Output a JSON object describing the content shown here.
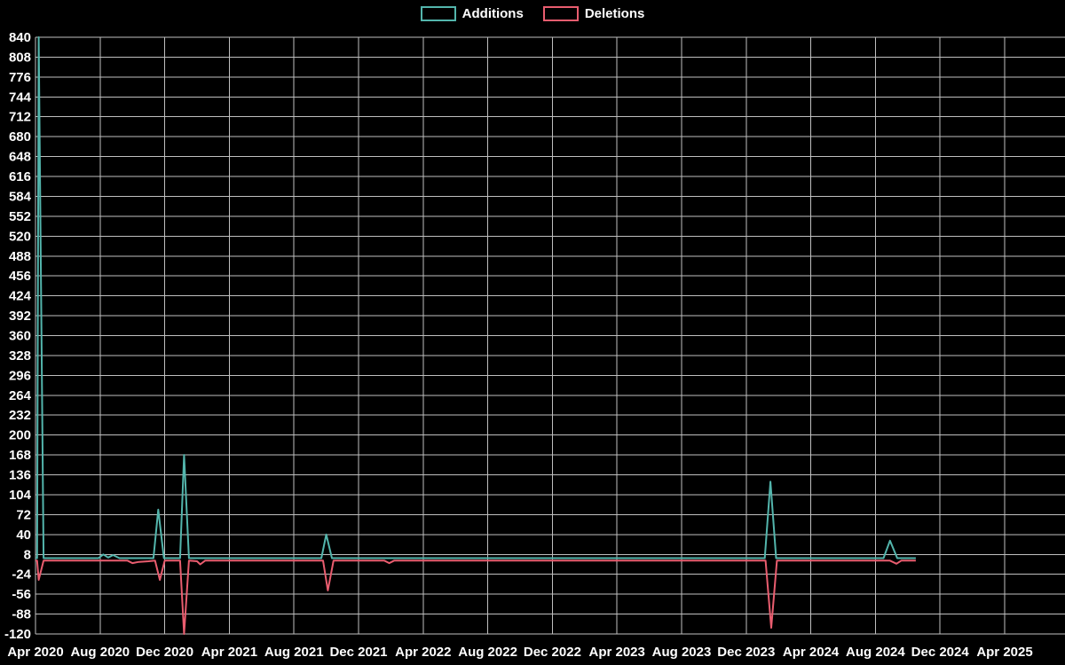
{
  "chart_data": {
    "type": "line",
    "title": "",
    "legend": [
      {
        "label": "Additions",
        "color": "#53b5ac"
      },
      {
        "label": "Deletions",
        "color": "#e95d6f"
      }
    ],
    "x_tick_labels": [
      "Apr 2020",
      "Aug 2020",
      "Dec 2020",
      "Apr 2021",
      "Aug 2021",
      "Dec 2021",
      "Apr 2022",
      "Aug 2022",
      "Dec 2022",
      "Apr 2023",
      "Aug 2023",
      "Dec 2023",
      "Apr 2024",
      "Aug 2024",
      "Dec 2024",
      "Apr 2025"
    ],
    "x_axis_unit": "months_since_apr_2020",
    "x_tick_interval_months": 4,
    "y_ticks": [
      840,
      808,
      776,
      744,
      712,
      680,
      648,
      616,
      584,
      552,
      520,
      488,
      456,
      424,
      392,
      360,
      328,
      296,
      264,
      232,
      200,
      168,
      136,
      104,
      72,
      40,
      8,
      -24,
      -56,
      -88,
      -120
    ],
    "ylim": [
      -120,
      840
    ],
    "xlim_months": [
      0,
      61
    ],
    "grid": true,
    "legend_position": "top-center",
    "background": "#000000",
    "grid_color": "#bfbfbf",
    "text_color": "#ffffff",
    "series": [
      {
        "name": "Additions",
        "color": "#53b5ac",
        "points": [
          [
            0,
            2
          ],
          [
            0.1,
            2
          ],
          [
            0.2,
            840
          ],
          [
            0.5,
            2
          ],
          [
            3.9,
            2
          ],
          [
            4.2,
            8
          ],
          [
            4.5,
            3
          ],
          [
            4.8,
            7
          ],
          [
            5.2,
            2
          ],
          [
            7.3,
            2
          ],
          [
            7.6,
            80
          ],
          [
            7.95,
            2
          ],
          [
            8.95,
            2
          ],
          [
            9.2,
            168
          ],
          [
            9.5,
            2
          ],
          [
            17.7,
            2
          ],
          [
            18.0,
            40
          ],
          [
            18.35,
            2
          ],
          [
            45.15,
            2
          ],
          [
            45.5,
            125
          ],
          [
            45.85,
            2
          ],
          [
            52.5,
            2
          ],
          [
            52.9,
            30
          ],
          [
            53.35,
            2
          ],
          [
            54.5,
            2
          ]
        ]
      },
      {
        "name": "Deletions",
        "color": "#e95d6f",
        "points": [
          [
            0,
            -2
          ],
          [
            0.1,
            -2
          ],
          [
            0.2,
            -33
          ],
          [
            0.5,
            -2
          ],
          [
            5.7,
            -2
          ],
          [
            6.0,
            -6
          ],
          [
            6.4,
            -4
          ],
          [
            7.0,
            -3
          ],
          [
            7.4,
            -2
          ],
          [
            7.7,
            -33
          ],
          [
            8.0,
            -2
          ],
          [
            8.95,
            -2
          ],
          [
            9.2,
            -120
          ],
          [
            9.5,
            -2
          ],
          [
            10.0,
            -3
          ],
          [
            10.2,
            -8
          ],
          [
            10.5,
            -2
          ],
          [
            17.8,
            -2
          ],
          [
            18.1,
            -50
          ],
          [
            18.45,
            -2
          ],
          [
            21.6,
            -2
          ],
          [
            21.9,
            -6
          ],
          [
            22.2,
            -2
          ],
          [
            45.2,
            -2
          ],
          [
            45.55,
            -110
          ],
          [
            45.9,
            -2
          ],
          [
            52.9,
            -2
          ],
          [
            53.3,
            -7
          ],
          [
            53.6,
            -2
          ],
          [
            54.5,
            -2
          ]
        ]
      }
    ]
  }
}
